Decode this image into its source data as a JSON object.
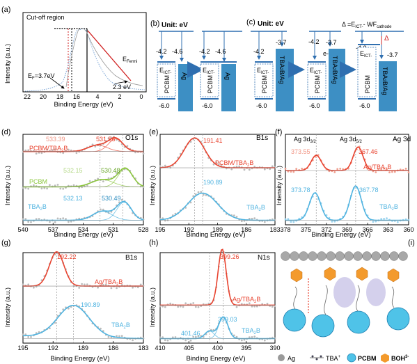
{
  "panels": {
    "a": {
      "label": "(a)",
      "cutoff": "Cut-off region",
      "ylabel": "Intensity (a.u.)",
      "xlabel": "Binding Energy (eV)",
      "xticks": [
        "22",
        "20",
        "18",
        "16",
        "4",
        "2",
        "0"
      ],
      "ef": "E",
      "ef_sub": "F",
      "ef_val": "=3.7eV",
      "vb": "2.3 eV",
      "efermi": "E",
      "efermi_sub": "Fermi"
    },
    "b": {
      "label": "(b)",
      "unit": "Unit: eV",
      "v42a": "-4.2",
      "v46a": "-4.6",
      "v60a": "-6.0",
      "v42b": "-4.2",
      "v46b": "-4.6",
      "v60b": "-6.0",
      "eict": "E",
      "eict_sub": "ICT-",
      "pcbm": "PCBM",
      "ag": "Ag"
    },
    "c": {
      "label": "(c)",
      "unit": "Unit: eV",
      "delta_eq_a": "Δ =E",
      "delta_eq_sub": "ICT-",
      "delta_eq_b": "- WF",
      "delta_eq_sub2": "cathode",
      "delta": "Δ",
      "v42a": "-4.2",
      "v37a": "-3.7",
      "v60a": "-6.0",
      "v42b": "-4.2",
      "v37b": "-3.7",
      "v60b": "-6.0",
      "v42c": "-4.2",
      "v37c": "-3.7",
      "v60c": "-6.0",
      "eminus": "e-",
      "eict": "E",
      "eict_sub": "ICT-",
      "pcbm": "PCBM",
      "tbab": "TBA",
      "tbab_sub": "2",
      "tbab_rest": "B/Ag"
    },
    "d": {
      "label": "(d)",
      "title": "O1s",
      "xlabel": "Binding Energy (eV)",
      "ylabel": "Intensity (a.u.)",
      "xticks": [
        "540",
        "537",
        "534",
        "531",
        "528"
      ],
      "s1": "PCBM/TBA",
      "s1_sub": "2",
      "s1_end": "B",
      "s2": "PCBM",
      "s3": "TBA",
      "s3_sub": "2",
      "s3_end": "B",
      "p1a": "533.39",
      "p1b": "531.56",
      "p2a": "532.15",
      "p2b": "530.48",
      "p3a": "532.13",
      "p3b": "530.49"
    },
    "e": {
      "label": "(e)",
      "title": "B1s",
      "xlabel": "Binding Energy (eV)",
      "ylabel": "Intensity (a.u.)",
      "xticks": [
        "195",
        "192",
        "189",
        "186",
        "183"
      ],
      "s1": "PCBM/TBA",
      "s1_sub": "2",
      "s1_end": "B",
      "s2": "TBA",
      "s2_sub": "2",
      "s2_end": "B",
      "p1": "191.41",
      "p2": "190.89"
    },
    "f": {
      "label": "(f)",
      "title": "Ag 3d",
      "xlabel": "Binding Energy (eV)",
      "ylabel": "Intensity (a.u.)",
      "xticks": [
        "378",
        "375",
        "372",
        "369",
        "366",
        "363",
        "360"
      ],
      "h1": "Ag 3d",
      "h1_sub": "3/2",
      "h2": "Ag 3d",
      "h2_sub": "5/2",
      "s1": "Ag/TBA",
      "s1_sub": "2",
      "s1_end": "B",
      "s2": "TBA",
      "s2_sub": "2",
      "s2_end": "B",
      "p1a": "373.55",
      "p1b": "367.46",
      "p2a": "373.78",
      "p2b": "367.78"
    },
    "g": {
      "label": "(g)",
      "title": "B1s",
      "xlabel": "Binding Energy (eV)",
      "ylabel": "Intensity (a.u.)",
      "xticks": [
        "195",
        "192",
        "189",
        "186",
        "183"
      ],
      "s1": "Ag/TBA",
      "s1_sub": "2",
      "s1_end": "B",
      "s2": "TBA",
      "s2_sub": "2",
      "s2_end": "B",
      "p1": "192.22",
      "p2": "190.89"
    },
    "h": {
      "label": "(h)",
      "title": "N1s",
      "xlabel": "Binding Energy (eV)",
      "ylabel": "Intensity (a.u.)",
      "xticks": [
        "410",
        "405",
        "400",
        "395",
        "390"
      ],
      "s1": "Ag/TBA",
      "s1_sub": "2",
      "s1_end": "B",
      "s2": "TBA",
      "s2_sub": "2",
      "s2_end": "B",
      "p1": "399.26",
      "p2a": "401.46",
      "p2b": "399.03"
    },
    "i": {
      "label": "(i)",
      "leg_ag": "Ag",
      "leg_tba": "TBA",
      "leg_tba_sup": "+",
      "leg_pcbm": "PCBM",
      "leg_boh": "BOH",
      "leg_boh_sup": "3-"
    }
  },
  "colors": {
    "red": "#e8432f",
    "green": "#8cc63f",
    "blue": "#4fb3e0",
    "bar": "#3d8fc4",
    "gray": "#b0b0b0"
  }
}
